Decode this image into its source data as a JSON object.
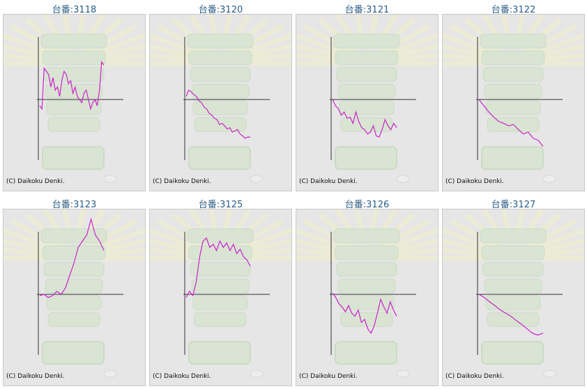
{
  "copyright": "(C) Daikoku Denki.",
  "colors": {
    "title": "#2c5d86",
    "line": "#cc22cc",
    "axis": "#333333",
    "panel_bg": "#e6e6e6"
  },
  "machines": [
    {
      "title": "台番:3118",
      "chart_data": {
        "type": "line",
        "y": [
          -0.1,
          -0.15,
          0.5,
          0.45,
          0.4,
          0.2,
          0.35,
          0.15,
          0.2,
          0.05,
          0.3,
          0.45,
          0.4,
          0.25,
          0.3,
          0.1,
          0.2,
          0.05,
          0,
          -0.05,
          0.1,
          0.15,
          0,
          -0.15,
          -0.05,
          0.0,
          -0.1,
          0.15,
          0.6,
          0.55
        ],
        "xlim": [
          0,
          1
        ],
        "ylim": [
          -1,
          1
        ]
      }
    },
    {
      "title": "台番:3120",
      "chart_data": {
        "type": "line",
        "y": [
          0.05,
          0.15,
          0.12,
          0.08,
          0.05,
          -0.02,
          -0.05,
          -0.12,
          -0.15,
          -0.22,
          -0.25,
          -0.3,
          -0.32,
          -0.4,
          -0.38,
          -0.42,
          -0.47,
          -0.45,
          -0.52,
          -0.5,
          -0.48,
          -0.55,
          -0.58,
          -0.62,
          -0.6,
          -0.6
        ],
        "xlim": [
          0,
          1
        ],
        "ylim": [
          -1,
          1
        ]
      }
    },
    {
      "title": "台番:3121",
      "chart_data": {
        "type": "line",
        "y": [
          0,
          -0.1,
          -0.15,
          -0.25,
          -0.2,
          -0.3,
          -0.28,
          -0.38,
          -0.2,
          -0.35,
          -0.45,
          -0.48,
          -0.55,
          -0.52,
          -0.42,
          -0.58,
          -0.6,
          -0.48,
          -0.32,
          -0.42,
          -0.48,
          -0.38,
          -0.45
        ],
        "xlim": [
          0,
          1
        ],
        "ylim": [
          -1,
          1
        ]
      }
    },
    {
      "title": "台番:3122",
      "chart_data": {
        "type": "line",
        "y": [
          0,
          -0.1,
          -0.2,
          -0.28,
          -0.35,
          -0.38,
          -0.42,
          -0.4,
          -0.48,
          -0.55,
          -0.52,
          -0.62,
          -0.65,
          -0.75
        ],
        "xlim": [
          0,
          1
        ],
        "ylim": [
          -1,
          1
        ]
      }
    },
    {
      "title": "台番:3123",
      "chart_data": {
        "type": "line",
        "y": [
          -0.02,
          0.0,
          -0.05,
          -0.02,
          0.05,
          0.0,
          0.1,
          0.3,
          0.5,
          0.75,
          0.85,
          0.95,
          1.2,
          0.95,
          0.85,
          0.7
        ],
        "xlim": [
          0,
          1
        ],
        "ylim": [
          -1,
          1
        ]
      }
    },
    {
      "title": "台番:3125",
      "chart_data": {
        "type": "line",
        "y": [
          -0.05,
          0.05,
          -0.02,
          0.2,
          0.6,
          0.85,
          0.9,
          0.75,
          0.8,
          0.7,
          0.85,
          0.75,
          0.82,
          0.7,
          0.8,
          0.65,
          0.72,
          0.6,
          0.55,
          0.45
        ],
        "xlim": [
          0,
          1
        ],
        "ylim": [
          -1,
          1
        ]
      }
    },
    {
      "title": "台番:3126",
      "chart_data": {
        "type": "line",
        "y": [
          0.02,
          -0.05,
          -0.15,
          -0.2,
          -0.28,
          -0.18,
          -0.3,
          -0.35,
          -0.25,
          -0.45,
          -0.4,
          -0.55,
          -0.62,
          -0.5,
          -0.3,
          -0.08,
          -0.2,
          -0.3,
          -0.12,
          -0.25,
          -0.35
        ],
        "xlim": [
          0,
          1
        ],
        "ylim": [
          -1,
          1
        ]
      }
    },
    {
      "title": "台番:3127",
      "chart_data": {
        "type": "line",
        "y": [
          0,
          -0.05,
          -0.12,
          -0.18,
          -0.25,
          -0.3,
          -0.35,
          -0.42,
          -0.48,
          -0.55,
          -0.62,
          -0.65,
          -0.62
        ],
        "xlim": [
          0,
          1
        ],
        "ylim": [
          -1,
          1
        ]
      }
    }
  ]
}
